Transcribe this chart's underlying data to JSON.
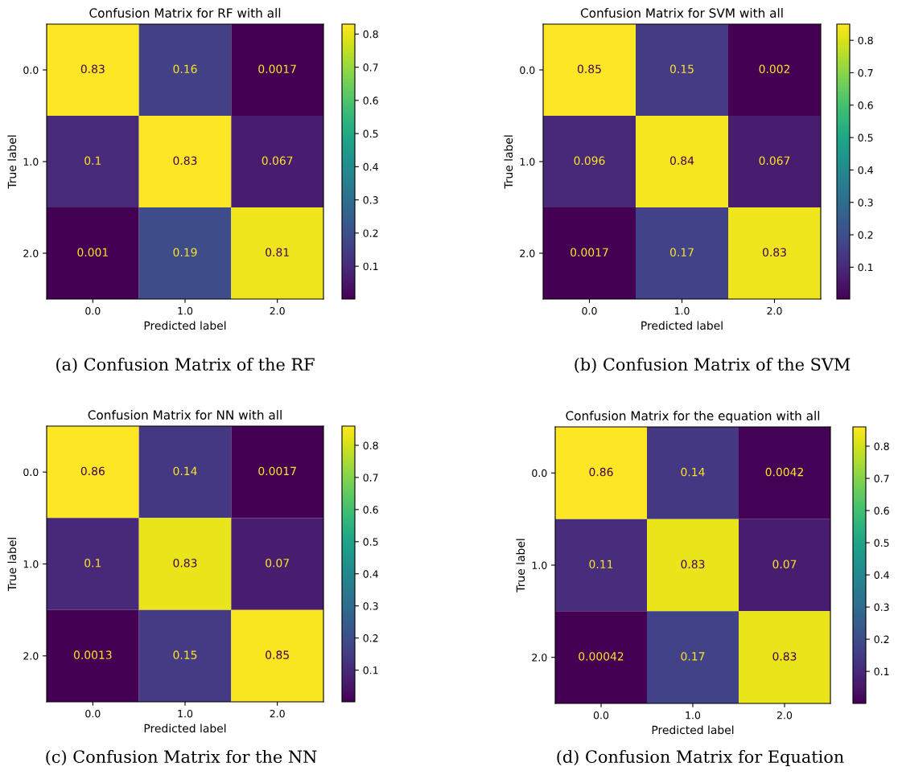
{
  "chart_data": [
    {
      "type": "heatmap",
      "title": "Confusion Matrix for RF with all",
      "xlabel": "Predicted label",
      "ylabel": "True label",
      "categories": [
        "0.0",
        "1.0",
        "2.0"
      ],
      "y_categories": [
        "0.0",
        "1.0",
        "2.0"
      ],
      "cells": [
        [
          0.83,
          0.16,
          0.0017
        ],
        [
          0.1,
          0.83,
          0.067
        ],
        [
          0.001,
          0.19,
          0.81
        ]
      ],
      "clim": [
        0.001,
        0.83
      ],
      "cticks": [
        0.1,
        0.2,
        0.3,
        0.4,
        0.5,
        0.6,
        0.7,
        0.8
      ],
      "data_labels": true,
      "annotations": [
        "(a) Confusion Matrix of the RF"
      ]
    },
    {
      "type": "heatmap",
      "title": "Confusion Matrix for SVM with all",
      "xlabel": "Predicted label",
      "ylabel": "True label",
      "categories": [
        "0.0",
        "1.0",
        "2.0"
      ],
      "y_categories": [
        "0.0",
        "1.0",
        "2.0"
      ],
      "cells": [
        [
          0.85,
          0.15,
          0.002
        ],
        [
          0.096,
          0.84,
          0.067
        ],
        [
          0.0017,
          0.17,
          0.83
        ]
      ],
      "clim": [
        0.0017,
        0.85
      ],
      "cticks": [
        0.1,
        0.2,
        0.3,
        0.4,
        0.5,
        0.6,
        0.7,
        0.8
      ],
      "data_labels": true,
      "annotations": [
        "(b) Confusion Matrix of the SVM"
      ]
    },
    {
      "type": "heatmap",
      "title": "Confusion Matrix for NN with all",
      "xlabel": "Predicted label",
      "ylabel": "True label",
      "categories": [
        "0.0",
        "1.0",
        "2.0"
      ],
      "y_categories": [
        "0.0",
        "1.0",
        "2.0"
      ],
      "cells": [
        [
          0.86,
          0.14,
          0.0017
        ],
        [
          0.1,
          0.83,
          0.07
        ],
        [
          0.0013,
          0.15,
          0.85
        ]
      ],
      "clim": [
        0.0013,
        0.86
      ],
      "cticks": [
        0.1,
        0.2,
        0.3,
        0.4,
        0.5,
        0.6,
        0.7,
        0.8
      ],
      "data_labels": true,
      "annotations": [
        "(c) Confusion Matrix for the NN"
      ]
    },
    {
      "type": "heatmap",
      "title": "Confusion Matrix for the equation with all",
      "xlabel": "Predicted label",
      "ylabel": "True label",
      "categories": [
        "0.0",
        "1.0",
        "2.0"
      ],
      "y_categories": [
        "0.0",
        "1.0",
        "2.0"
      ],
      "cells": [
        [
          0.86,
          0.14,
          0.0042
        ],
        [
          0.11,
          0.83,
          0.07
        ],
        [
          0.00042,
          0.17,
          0.83
        ]
      ],
      "clim": [
        0.00042,
        0.86
      ],
      "cticks": [
        0.1,
        0.2,
        0.3,
        0.4,
        0.5,
        0.6,
        0.7,
        0.8
      ],
      "data_labels": true,
      "annotations": [
        "(d) Confusion Matrix for Equation"
      ]
    }
  ]
}
